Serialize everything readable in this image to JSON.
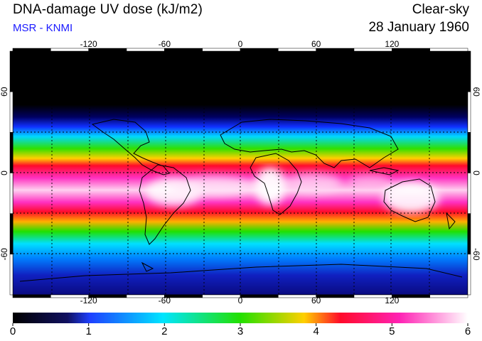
{
  "header": {
    "title": "DNA-damage UV dose (kJ/m2)",
    "source": "MSR - KNMI",
    "sky_condition": "Clear-sky",
    "date": "28 January 1960"
  },
  "map": {
    "lon_labels": [
      "-120",
      "-60",
      "0",
      "60",
      "120"
    ],
    "lon_values": [
      -120,
      -60,
      0,
      60,
      120
    ],
    "lat_labels": [
      "60",
      "0",
      "-60"
    ],
    "lat_values": [
      60,
      0,
      -60
    ],
    "colors": {
      "source_text": "#1a1aff",
      "polar_night": "#000000"
    }
  },
  "colorbar": {
    "labels": [
      "0",
      "1",
      "2",
      "3",
      "4",
      "5",
      "6"
    ],
    "min": 0,
    "max": 6,
    "stops": [
      "#000000",
      "#1e40ff",
      "#00e5ff",
      "#22e000",
      "#ffd000",
      "#ff0a2a",
      "#ff22b4",
      "#ffffff"
    ]
  }
}
